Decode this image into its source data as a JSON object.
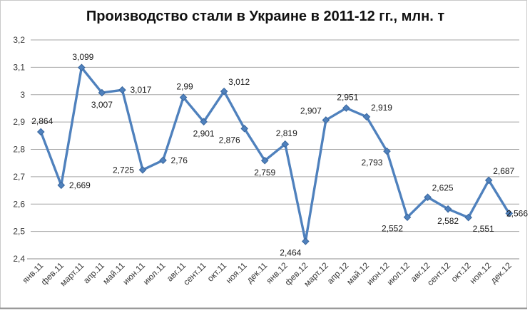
{
  "chart_data": {
    "type": "line",
    "title": "Производство стали в Украине в 2011-12 гг., млн. т",
    "categories": [
      "янв.11",
      "фев.11",
      "март.11",
      "апр.11",
      "май.11",
      "июн.11",
      "июл.11",
      "авг.11",
      "сент.11",
      "окт.11",
      "ноя.11",
      "дек.11",
      "янв.12",
      "фев.12",
      "март.12",
      "апр.12",
      "май.12",
      "июн.12",
      "июл.12",
      "авг.12",
      "сент.12",
      "окт.12",
      "ноя.12",
      "дек.12"
    ],
    "values": [
      2.864,
      2.669,
      3.099,
      3.007,
      3.017,
      2.725,
      2.76,
      2.99,
      2.901,
      3.012,
      2.876,
      2.759,
      2.819,
      2.464,
      2.907,
      2.951,
      2.919,
      2.793,
      2.552,
      2.625,
      2.582,
      2.551,
      2.687,
      2.566
    ],
    "data_labels": [
      "2,864",
      "2,669",
      "3,099",
      "3,007",
      "3,017",
      "2,725",
      "2,76",
      "2,99",
      "2,901",
      "3,012",
      "2,876",
      "2,759",
      "2,819",
      "2,464",
      "2,907",
      "2,951",
      "2,919",
      "2,793",
      "2,552",
      "2,625",
      "2,582",
      "2,551",
      "2,687",
      "2,566"
    ],
    "label_positions": [
      "above",
      "right",
      "above",
      "below",
      "right",
      "left",
      "right",
      "above",
      "below",
      "above-right",
      "below-left",
      "below",
      "above",
      "below-left",
      "above-left",
      "above",
      "above-right",
      "below-left",
      "below-left",
      "above-right",
      "below",
      "below-right",
      "above-right",
      "right-edge"
    ],
    "y_ticks": [
      "2,4",
      "2,5",
      "2,6",
      "2,7",
      "2,8",
      "2,9",
      "3",
      "3,1",
      "3,2"
    ],
    "ylim": [
      2.4,
      3.2
    ],
    "y_step": 0.1,
    "grid": true,
    "legend": "none",
    "colors": {
      "series": "#4F81BD",
      "marker_border": "#3A679E",
      "gridline": "#A6A6A6",
      "axis_line": "#8C8C8C",
      "frame_border": "#C9C9C9",
      "frame_bottom": "#8F8F8F",
      "background": "#FFFFFF"
    }
  }
}
